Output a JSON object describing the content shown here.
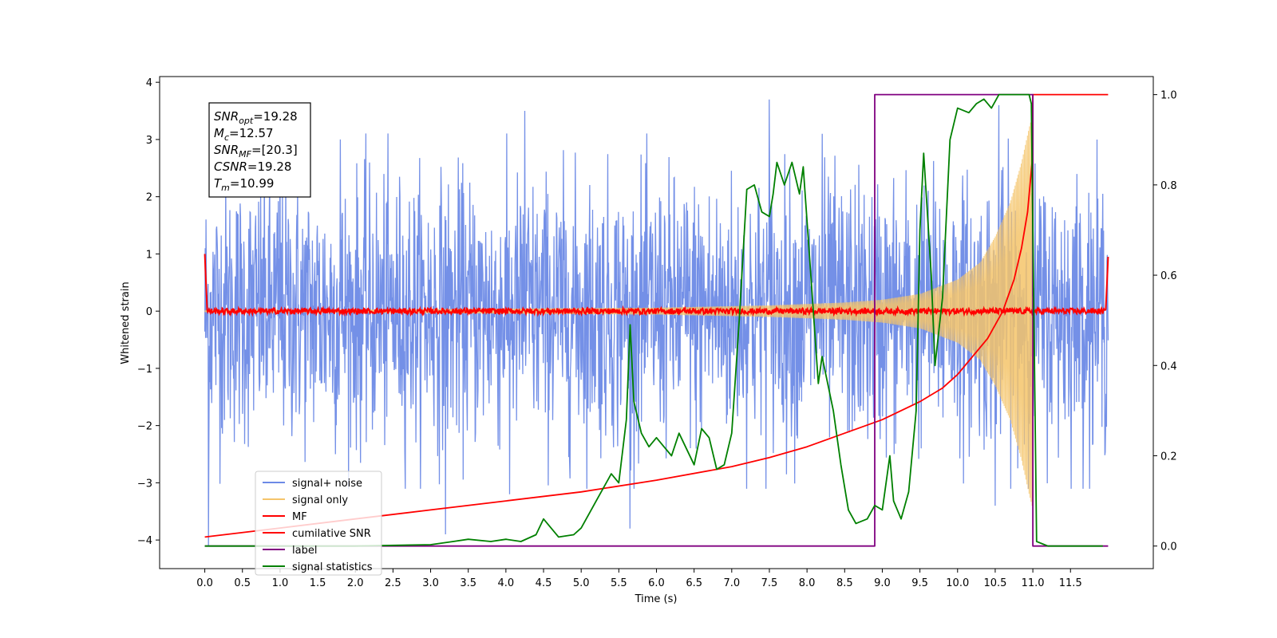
{
  "chart_data": {
    "type": "line",
    "xlabel": "Time (s)",
    "ylabel": "Whitened strain",
    "xlim": [
      -0.6,
      12.6
    ],
    "ylim": [
      -4.5,
      4.1
    ],
    "ylim_right": [
      -0.05,
      1.04
    ],
    "x_ticks": [
      0.0,
      0.5,
      1.0,
      1.5,
      2.0,
      2.5,
      3.0,
      3.5,
      4.0,
      4.5,
      5.0,
      5.5,
      6.0,
      6.5,
      7.0,
      7.5,
      8.0,
      8.5,
      9.0,
      9.5,
      10.0,
      10.5,
      11.0,
      11.5
    ],
    "x_tick_labels": [
      "0.0",
      "0.5",
      "1.0",
      "1.5",
      "2.0",
      "2.5",
      "3.0",
      "3.5",
      "4.0",
      "4.5",
      "5.0",
      "5.5",
      "6.0",
      "6.5",
      "7.0",
      "7.5",
      "8.0",
      "8.5",
      "9.0",
      "9.5",
      "10.0",
      "10.5",
      "11.0",
      "11.5"
    ],
    "y_ticks": [
      -4,
      -3,
      -2,
      -1,
      0,
      1,
      2,
      3,
      4
    ],
    "y_tick_labels": [
      "−4",
      "−3",
      "−2",
      "−1",
      "0",
      "1",
      "2",
      "3",
      "4"
    ],
    "y_right_ticks": [
      0.0,
      0.2,
      0.4,
      0.6,
      0.8,
      1.0
    ],
    "y_right_tick_labels": [
      "0.0",
      "0.2",
      "0.4",
      "0.6",
      "0.8",
      "1.0"
    ],
    "legend_position": "lower-left",
    "grid": false,
    "series": [
      {
        "name": "signal+ noise",
        "axis": "left",
        "color": "#6d8ae6",
        "kind": "noise",
        "x_range": [
          0.0,
          12.0
        ],
        "typical_envelope": [
          -2.3,
          2.3
        ],
        "notable_spikes": [
          [
            1.0,
            3.35
          ],
          [
            1.8,
            3.0
          ],
          [
            4.25,
            3.5
          ],
          [
            7.5,
            3.7
          ],
          [
            8.2,
            3.1
          ],
          [
            10.55,
            3.6
          ],
          [
            11.0,
            3.2
          ],
          [
            0.05,
            -4.1
          ],
          [
            3.2,
            -3.9
          ],
          [
            5.65,
            -3.8
          ],
          [
            10.5,
            -3.4
          ],
          [
            4.05,
            -3.2
          ]
        ]
      },
      {
        "name": "signal only",
        "axis": "left",
        "color": "#f5c46a",
        "kind": "chirp",
        "x_range": [
          0.0,
          10.99
        ],
        "amplitude_points": [
          [
            0.0,
            0.01
          ],
          [
            6.0,
            0.06
          ],
          [
            7.5,
            0.1
          ],
          [
            8.5,
            0.15
          ],
          [
            9.0,
            0.2
          ],
          [
            9.5,
            0.3
          ],
          [
            10.0,
            0.55
          ],
          [
            10.3,
            0.85
          ],
          [
            10.5,
            1.3
          ],
          [
            10.7,
            1.9
          ],
          [
            10.85,
            2.6
          ],
          [
            10.95,
            3.2
          ],
          [
            10.99,
            3.4
          ]
        ]
      },
      {
        "name": "MF",
        "axis": "left",
        "color": "#ff0000",
        "kind": "flat-noise",
        "x_range": [
          0.0,
          12.0
        ],
        "level": 0.0,
        "jitter": 0.05,
        "edge_values": [
          [
            0.0,
            1.0
          ],
          [
            0.03,
            0.05
          ],
          [
            11.97,
            0.05
          ],
          [
            12.0,
            0.95
          ]
        ]
      },
      {
        "name": "cumilative SNR",
        "axis": "right",
        "color": "#ff0000",
        "x": [
          0.0,
          1.0,
          2.0,
          3.0,
          4.0,
          5.0,
          6.0,
          7.0,
          7.5,
          8.0,
          8.5,
          9.0,
          9.5,
          9.8,
          10.0,
          10.2,
          10.4,
          10.6,
          10.75,
          10.85,
          10.93,
          10.99,
          11.0,
          12.0
        ],
        "values": [
          0.02,
          0.04,
          0.06,
          0.08,
          0.1,
          0.12,
          0.146,
          0.176,
          0.196,
          0.22,
          0.25,
          0.28,
          0.32,
          0.35,
          0.38,
          0.42,
          0.46,
          0.52,
          0.59,
          0.66,
          0.74,
          0.85,
          1.0,
          1.0
        ]
      },
      {
        "name": "label",
        "axis": "right",
        "color": "#800080",
        "x": [
          0.0,
          8.9,
          8.9,
          11.0,
          11.0,
          12.0
        ],
        "values": [
          0.0,
          0.0,
          1.0,
          1.0,
          0.0,
          0.0
        ]
      },
      {
        "name": "signal statistics",
        "axis": "right",
        "color": "#008000",
        "x": [
          0.0,
          1.0,
          2.0,
          3.0,
          3.3,
          3.5,
          3.8,
          4.0,
          4.2,
          4.4,
          4.5,
          4.7,
          4.9,
          5.0,
          5.2,
          5.4,
          5.5,
          5.6,
          5.65,
          5.7,
          5.8,
          5.9,
          6.0,
          6.1,
          6.2,
          6.3,
          6.5,
          6.6,
          6.7,
          6.8,
          6.9,
          7.0,
          7.1,
          7.2,
          7.3,
          7.4,
          7.5,
          7.55,
          7.6,
          7.7,
          7.8,
          7.9,
          7.95,
          8.05,
          8.15,
          8.2,
          8.35,
          8.45,
          8.55,
          8.65,
          8.8,
          8.9,
          9.0,
          9.1,
          9.15,
          9.25,
          9.35,
          9.45,
          9.5,
          9.55,
          9.65,
          9.7,
          9.8,
          9.9,
          10.0,
          10.15,
          10.25,
          10.35,
          10.45,
          10.55,
          10.65,
          10.75,
          10.95,
          10.98,
          11.05,
          11.2,
          11.5,
          11.93
        ],
        "values": [
          0.0,
          0.0,
          0.0,
          0.003,
          0.01,
          0.015,
          0.01,
          0.015,
          0.01,
          0.025,
          0.06,
          0.02,
          0.025,
          0.04,
          0.1,
          0.16,
          0.14,
          0.28,
          0.49,
          0.32,
          0.25,
          0.22,
          0.24,
          0.22,
          0.2,
          0.25,
          0.18,
          0.26,
          0.24,
          0.17,
          0.18,
          0.25,
          0.5,
          0.79,
          0.8,
          0.74,
          0.73,
          0.78,
          0.85,
          0.8,
          0.85,
          0.78,
          0.84,
          0.6,
          0.36,
          0.42,
          0.3,
          0.18,
          0.08,
          0.05,
          0.06,
          0.09,
          0.08,
          0.2,
          0.1,
          0.06,
          0.12,
          0.3,
          0.7,
          0.87,
          0.6,
          0.4,
          0.55,
          0.9,
          0.97,
          0.96,
          0.98,
          0.99,
          0.97,
          1.0,
          1.0,
          1.0,
          1.0,
          0.98,
          0.01,
          0.0,
          0.0,
          0.0
        ]
      }
    ],
    "annotation_box": {
      "lines": [
        {
          "main": "SNR",
          "sub": "opt",
          "rest": "=19.28"
        },
        {
          "main": "M",
          "sub": "c",
          "rest": "=12.57"
        },
        {
          "main": "SNR",
          "sub": "MF",
          "rest": "=[20.3]"
        },
        {
          "main": "CSNR",
          "sub": "",
          "rest": "=19.28"
        },
        {
          "main": "T",
          "sub": "m",
          "rest": "=10.99"
        }
      ]
    }
  }
}
